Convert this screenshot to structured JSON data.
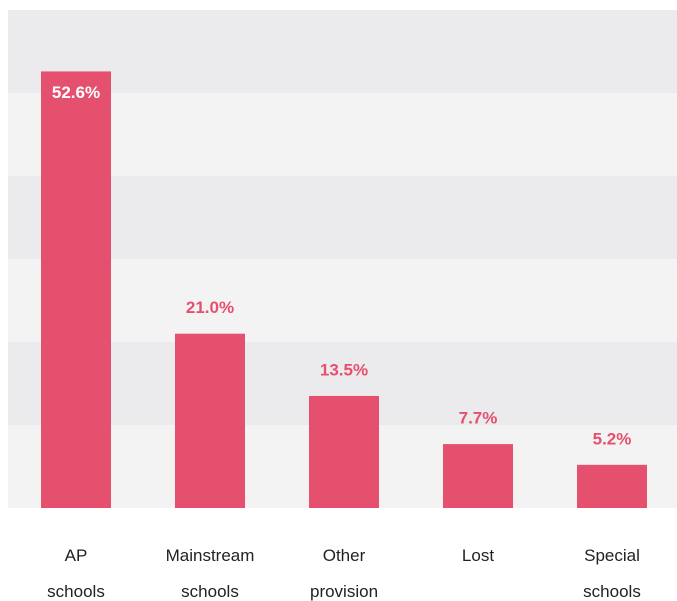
{
  "chart_data": {
    "type": "bar",
    "categories": [
      "AP schools",
      "Mainstream schools",
      "Other provision",
      "Lost",
      "Special schools"
    ],
    "values": [
      52.6,
      21.0,
      13.5,
      7.7,
      5.2
    ],
    "value_labels": [
      "52.6%",
      "21.0%",
      "13.5%",
      "7.7%",
      "5.2%"
    ],
    "color": "#e5506e",
    "ylim": [
      0,
      60
    ],
    "yticks": [
      0,
      10,
      20,
      30,
      40,
      50,
      60
    ],
    "band_colors": [
      "#f3f3f3",
      "#ebebed"
    ]
  }
}
